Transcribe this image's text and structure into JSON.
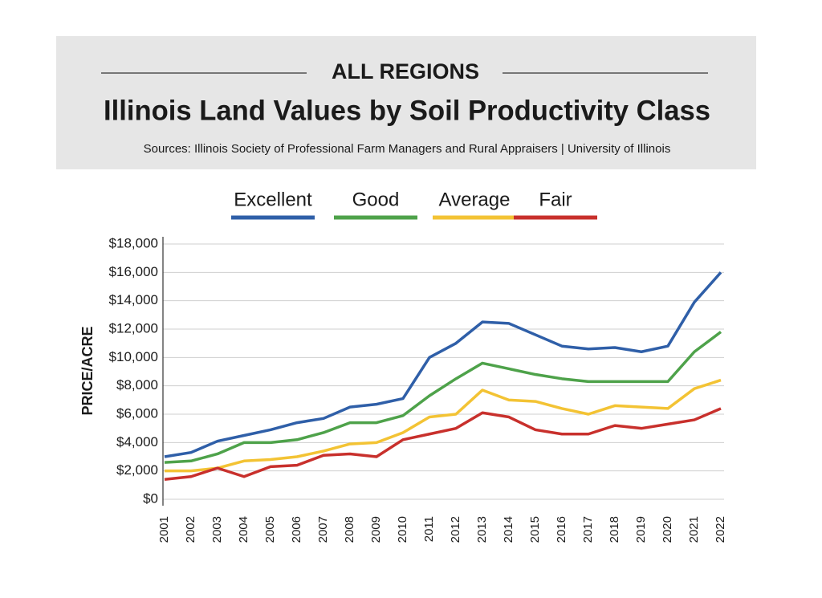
{
  "chart_data": {
    "type": "line",
    "kicker": "ALL REGIONS",
    "title": "Illinois Land Values by Soil Productivity Class",
    "subtitle": "Sources: Illinois Society of Professional Farm Managers and Rural Appraisers | University of Illinois",
    "y_label": "PRICE/ACRE",
    "categories": [
      "2001",
      "2002",
      "2003",
      "2004",
      "2005",
      "2006",
      "2007",
      "2008",
      "2009",
      "2010",
      "2011",
      "2012",
      "2013",
      "2014",
      "2015",
      "2016",
      "2017",
      "2018",
      "2019",
      "2020",
      "2021",
      "2022"
    ],
    "series": [
      {
        "name": "Excellent",
        "color": "#2f5fa8",
        "values": [
          3000,
          3300,
          4100,
          4500,
          4900,
          5400,
          5700,
          6500,
          6700,
          7100,
          10000,
          11000,
          12500,
          12400,
          11600,
          10800,
          10600,
          10700,
          10400,
          10800,
          13900,
          16000
        ]
      },
      {
        "name": "Good",
        "color": "#4ea24a",
        "values": [
          2600,
          2700,
          3200,
          4000,
          4000,
          4200,
          4700,
          5400,
          5400,
          5900,
          7300,
          8500,
          9600,
          9200,
          8800,
          8500,
          8300,
          8300,
          8300,
          8300,
          10400,
          11800
        ]
      },
      {
        "name": "Average",
        "color": "#f3c334",
        "values": [
          2000,
          2000,
          2200,
          2700,
          2800,
          3000,
          3400,
          3900,
          4000,
          4700,
          5800,
          6000,
          7700,
          7000,
          6900,
          6400,
          6000,
          6600,
          6500,
          6400,
          7800,
          8400
        ]
      },
      {
        "name": "Fair",
        "color": "#c8302c",
        "values": [
          1400,
          1600,
          2200,
          1600,
          2300,
          2400,
          3100,
          3200,
          3000,
          4200,
          4600,
          5000,
          6100,
          5800,
          4900,
          4600,
          4600,
          5200,
          5000,
          5300,
          5600,
          6400
        ]
      }
    ],
    "ylim": [
      0,
      18000
    ],
    "yticks": [
      {
        "value": 0,
        "label": "$0"
      },
      {
        "value": 2000,
        "label": "$2,000"
      },
      {
        "value": 4000,
        "label": "$4,000"
      },
      {
        "value": 6000,
        "label": "$6,000"
      },
      {
        "value": 8000,
        "label": "$8,000"
      },
      {
        "value": 10000,
        "label": "$10,000"
      },
      {
        "value": 12000,
        "label": "$12,000"
      },
      {
        "value": 14000,
        "label": "$14,000"
      },
      {
        "value": 16000,
        "label": "$16,000"
      },
      {
        "value": 18000,
        "label": "$18,000"
      }
    ],
    "grid": true
  }
}
